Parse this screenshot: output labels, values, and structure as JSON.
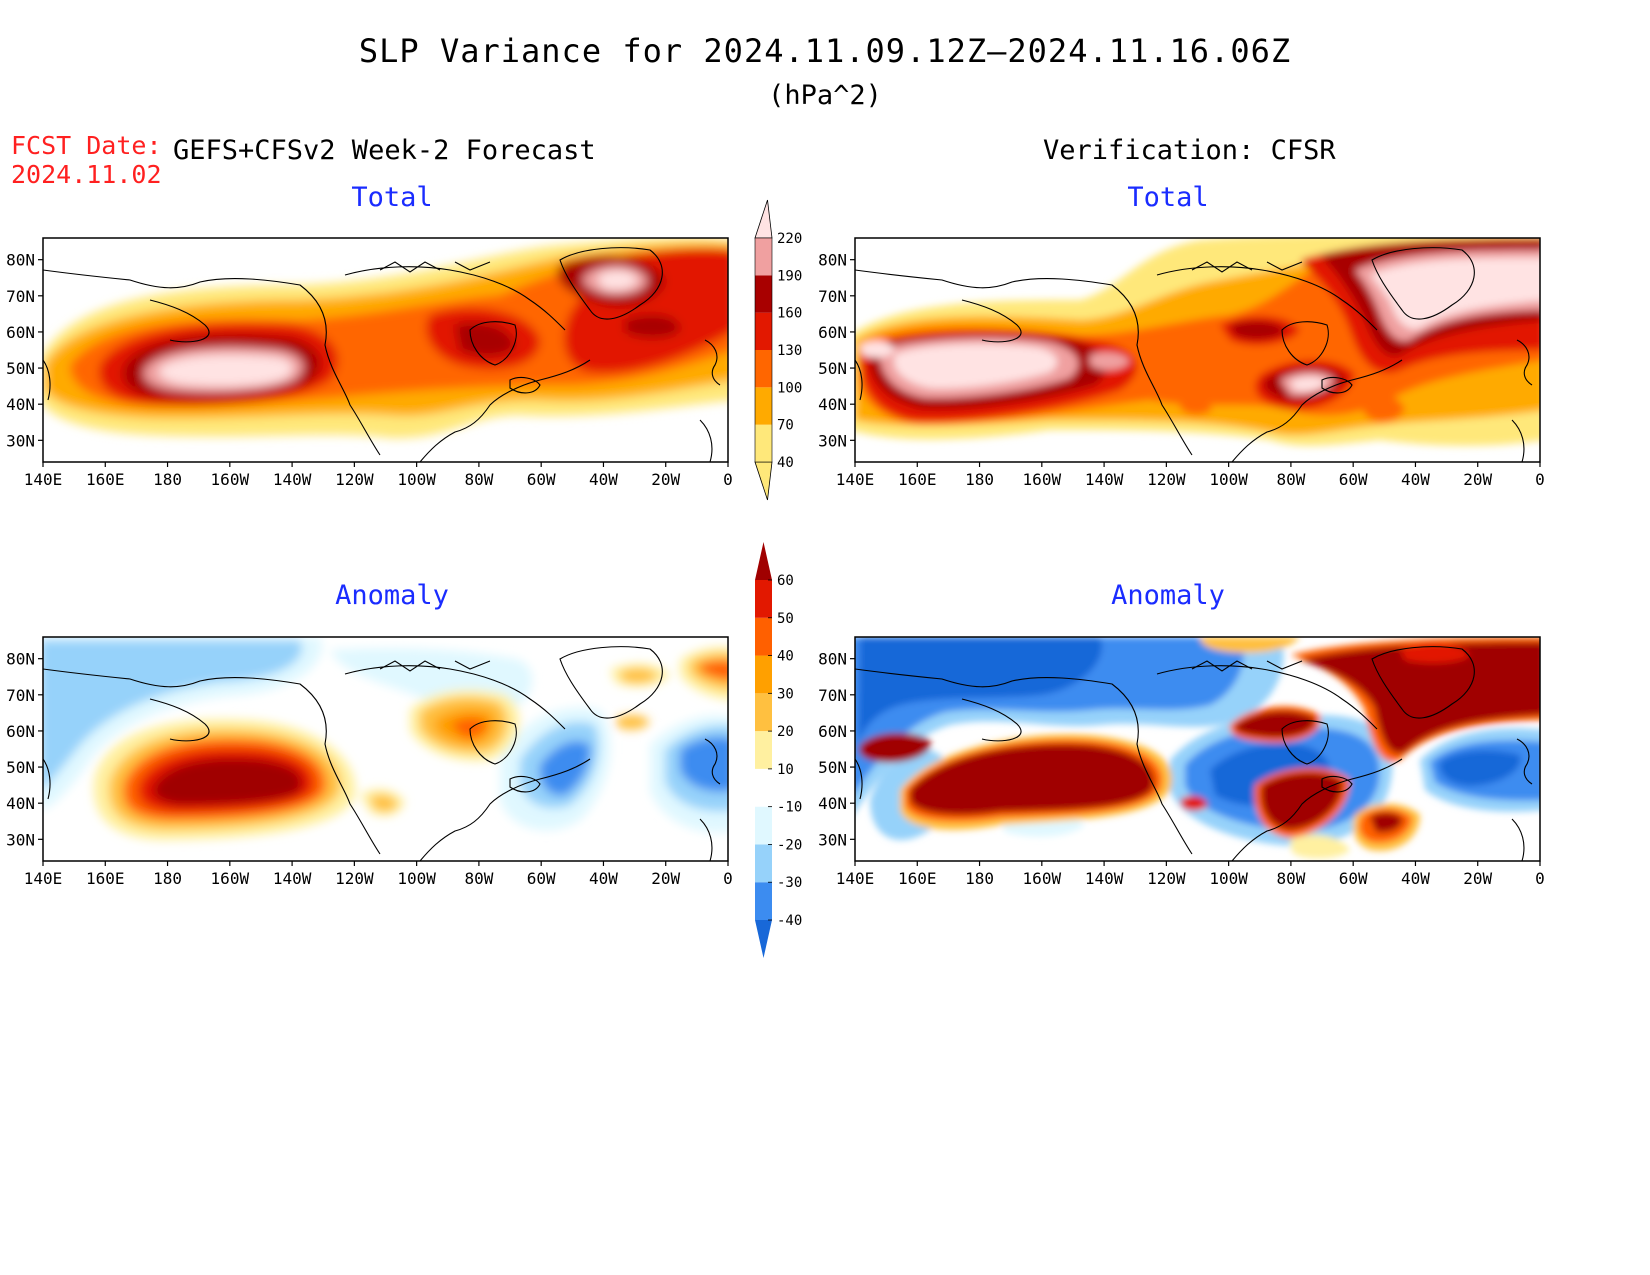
{
  "header": {
    "title": "SLP Variance for 2024.11.09.12Z–2024.11.16.06Z",
    "units": "(hPa^2)",
    "fcst_label": "FCST Date:",
    "fcst_date": "2024.11.02",
    "left_subtitle": "GEFS+CFSv2 Week-2 Forecast",
    "right_subtitle": "Verification: CFSR"
  },
  "axes": {
    "lat_labels": [
      "80N",
      "70N",
      "60N",
      "50N",
      "40N",
      "30N"
    ],
    "lon_labels": [
      "140E",
      "160E",
      "180",
      "160W",
      "140W",
      "120W",
      "100W",
      "80W",
      "60W",
      "40W",
      "20W",
      "0"
    ]
  },
  "panels": {
    "fcst_total": {
      "title": "Total"
    },
    "verif_total": {
      "title": "Total"
    },
    "fcst_anom": {
      "title": "Anomaly"
    },
    "verif_anom": {
      "title": "Anomaly"
    }
  },
  "colorbars": {
    "total": {
      "levels": [
        "40",
        "70",
        "100",
        "130",
        "160",
        "190",
        "220"
      ],
      "colors": [
        "#ffe87a",
        "#ffaa00",
        "#ff6600",
        "#e21800",
        "#a80000",
        "#f0a0a0",
        "#ffe3e3"
      ]
    },
    "anomaly": {
      "levels": [
        "-40",
        "-30",
        "-20",
        "-10",
        "10",
        "20",
        "30",
        "40",
        "50",
        "60"
      ],
      "colors": [
        "#1868d8",
        "#3c8cf0",
        "#96d2fa",
        "#e0f8ff",
        "#ffffff",
        "#fff0a0",
        "#ffc040",
        "#ffa000",
        "#ff6000",
        "#e21800",
        "#a00000"
      ]
    }
  },
  "colors": {
    "title_text": "#000000",
    "fcst_text": "#ff2020",
    "panel_title_text": "#1a2cff"
  }
}
